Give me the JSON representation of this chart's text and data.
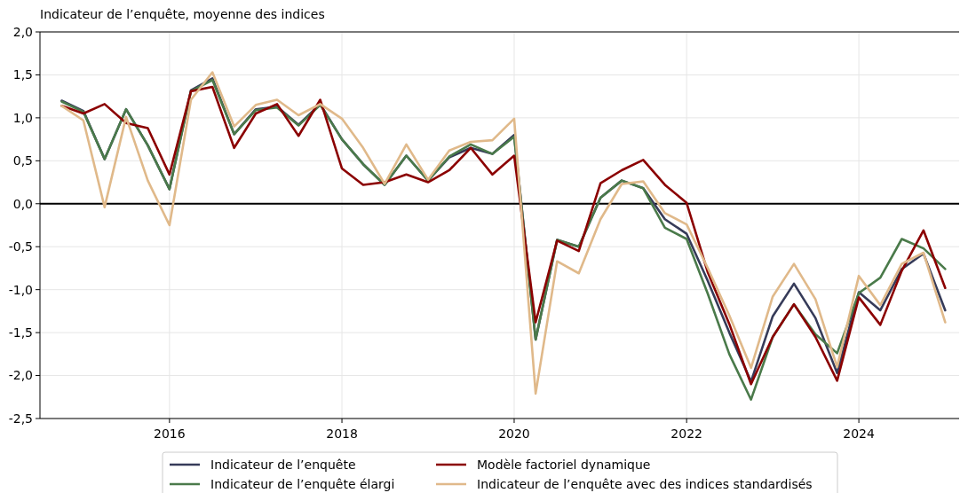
{
  "chart_data": {
    "type": "line",
    "title": "Indicateur de l’enquête, moyenne des indices",
    "x": [
      "2014-10",
      "2015-01",
      "2015-04",
      "2015-07",
      "2015-10",
      "2016-01",
      "2016-04",
      "2016-07",
      "2016-10",
      "2017-01",
      "2017-04",
      "2017-07",
      "2017-10",
      "2018-01",
      "2018-04",
      "2018-07",
      "2018-10",
      "2019-01",
      "2019-04",
      "2019-07",
      "2019-10",
      "2020-01",
      "2020-04",
      "2020-07",
      "2020-10",
      "2021-01",
      "2021-04",
      "2021-07",
      "2021-10",
      "2022-01",
      "2022-04",
      "2022-07",
      "2022-10",
      "2023-01",
      "2023-04",
      "2023-07",
      "2023-10",
      "2024-01",
      "2024-04",
      "2024-07",
      "2024-10",
      "2025-01"
    ],
    "series": [
      {
        "name": "Indicateur de l’enquête",
        "color": "#363b59",
        "values": [
          1.2,
          1.08,
          0.52,
          1.1,
          0.68,
          0.17,
          1.32,
          1.46,
          0.81,
          1.1,
          1.13,
          0.92,
          1.16,
          0.75,
          0.46,
          0.22,
          0.56,
          0.27,
          0.54,
          0.65,
          0.58,
          0.8,
          -1.58,
          -0.42,
          -0.5,
          0.07,
          0.27,
          0.18,
          -0.18,
          -0.35,
          -0.9,
          -1.5,
          -2.07,
          -1.31,
          -0.93,
          -1.33,
          -1.97,
          -1.03,
          -1.24,
          -0.76,
          -0.58,
          -1.24
        ]
      },
      {
        "name": "Indicateur de l’enquête élargi",
        "color": "#4a7a4a",
        "values": [
          1.19,
          1.07,
          0.52,
          1.1,
          0.68,
          0.17,
          1.31,
          1.44,
          0.81,
          1.09,
          1.12,
          0.91,
          1.15,
          0.75,
          0.46,
          0.22,
          0.56,
          0.27,
          0.55,
          0.69,
          0.58,
          0.78,
          -1.58,
          -0.42,
          -0.5,
          0.07,
          0.27,
          0.18,
          -0.28,
          -0.41,
          -1.05,
          -1.75,
          -2.28,
          -1.55,
          -1.17,
          -1.52,
          -1.74,
          -1.04,
          -0.86,
          -0.41,
          -0.52,
          -0.76
        ]
      },
      {
        "name": "Modèle factoriel dynamique",
        "color": "#8b0000",
        "values": [
          1.14,
          1.05,
          1.16,
          0.94,
          0.88,
          0.34,
          1.31,
          1.36,
          0.65,
          1.05,
          1.16,
          0.79,
          1.21,
          0.41,
          0.22,
          0.25,
          0.34,
          0.25,
          0.39,
          0.65,
          0.34,
          0.56,
          -1.38,
          -0.43,
          -0.55,
          0.24,
          0.39,
          0.51,
          0.22,
          0.01,
          -0.8,
          -1.4,
          -2.1,
          -1.55,
          -1.17,
          -1.55,
          -2.06,
          -1.09,
          -1.41,
          -0.78,
          -0.31,
          -0.98
        ]
      },
      {
        "name": "Indicateur de l’enquête avec des indices standardisés",
        "color": "#e0b98a",
        "values": [
          1.14,
          0.97,
          -0.04,
          1.01,
          0.27,
          -0.25,
          1.21,
          1.53,
          0.9,
          1.15,
          1.21,
          1.03,
          1.16,
          0.99,
          0.65,
          0.23,
          0.69,
          0.28,
          0.62,
          0.72,
          0.74,
          0.99,
          -2.21,
          -0.67,
          -0.81,
          -0.18,
          0.23,
          0.26,
          -0.11,
          -0.24,
          -0.75,
          -1.3,
          -1.91,
          -1.08,
          -0.7,
          -1.11,
          -1.9,
          -0.84,
          -1.18,
          -0.7,
          -0.57,
          -1.38
        ]
      }
    ],
    "xlim": [
      "2014-07",
      "2025-03"
    ],
    "xticks": [
      {
        "value": "2016",
        "label": "2016"
      },
      {
        "value": "2018",
        "label": "2018"
      },
      {
        "value": "2020",
        "label": "2020"
      },
      {
        "value": "2022",
        "label": "2022"
      },
      {
        "value": "2024",
        "label": "2024"
      }
    ],
    "ylim": [
      -2.5,
      2.0
    ],
    "yticks": [
      {
        "value": -2.5,
        "label": "-2,5"
      },
      {
        "value": -2.0,
        "label": "-2,0"
      },
      {
        "value": -1.5,
        "label": "-1,5"
      },
      {
        "value": -1.0,
        "label": "-1,0"
      },
      {
        "value": -0.5,
        "label": "-0,5"
      },
      {
        "value": 0,
        "label": "0,0"
      },
      {
        "value": 0.5,
        "label": "0,5"
      },
      {
        "value": 1.0,
        "label": "1,0"
      },
      {
        "value": 1.5,
        "label": "1,5"
      },
      {
        "value": 2.0,
        "label": "2,0"
      }
    ],
    "ref_lines": [
      {
        "axis": "y",
        "value": 0,
        "color": "#000000"
      }
    ],
    "grid": true,
    "legend": "bottom",
    "marker": "none",
    "line_style": "solid"
  }
}
